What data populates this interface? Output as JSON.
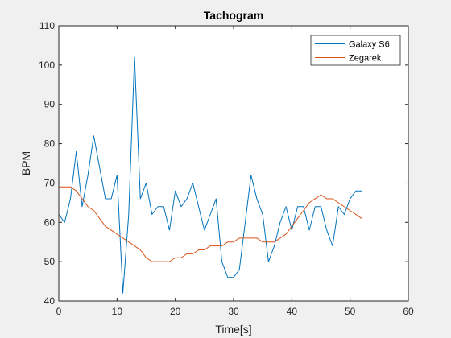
{
  "chart_data": {
    "type": "line",
    "title": "Tachogram",
    "xlabel": "Time[s]",
    "ylabel": "BPM",
    "xlim": [
      0,
      60
    ],
    "ylim": [
      40,
      110
    ],
    "xticks": [
      0,
      10,
      20,
      30,
      40,
      50,
      60
    ],
    "yticks": [
      40,
      50,
      60,
      70,
      80,
      90,
      100,
      110
    ],
    "grid": false,
    "legend_position": "top-right",
    "series": [
      {
        "name": "Galaxy S6",
        "color": "#0072bd",
        "x": [
          0,
          1,
          2,
          3,
          4,
          5,
          6,
          7,
          8,
          9,
          10,
          11,
          12,
          13,
          14,
          15,
          16,
          17,
          18,
          19,
          20,
          21,
          22,
          23,
          24,
          25,
          26,
          27,
          28,
          29,
          30,
          31,
          32,
          33,
          34,
          35,
          36,
          37,
          38,
          39,
          40,
          41,
          42,
          43,
          44,
          45,
          46,
          47,
          48,
          49,
          50,
          51,
          52
        ],
        "y": [
          62,
          60,
          66,
          78,
          64,
          72,
          82,
          74,
          66,
          66,
          72,
          42,
          62,
          102,
          66,
          70,
          62,
          64,
          64,
          58,
          68,
          64,
          66,
          70,
          64,
          58,
          62,
          66,
          50,
          46,
          46,
          48,
          60,
          72,
          66,
          62,
          50,
          54,
          60,
          64,
          58,
          64,
          64,
          58,
          64,
          64,
          58,
          54,
          64,
          62,
          66,
          68,
          68
        ]
      },
      {
        "name": "Zegarek",
        "color": "#d95319",
        "x": [
          0,
          1,
          2,
          3,
          4,
          5,
          6,
          7,
          8,
          9,
          10,
          11,
          12,
          13,
          14,
          15,
          16,
          17,
          18,
          19,
          20,
          21,
          22,
          23,
          24,
          25,
          26,
          27,
          28,
          29,
          30,
          31,
          32,
          33,
          34,
          35,
          36,
          37,
          38,
          39,
          40,
          41,
          42,
          43,
          44,
          45,
          46,
          47,
          48,
          49,
          50,
          51,
          52
        ],
        "y": [
          69,
          69,
          69,
          68,
          66,
          64,
          63,
          61,
          59,
          58,
          57,
          56,
          55,
          54,
          53,
          51,
          50,
          50,
          50,
          50,
          51,
          51,
          52,
          52,
          53,
          53,
          54,
          54,
          54,
          55,
          55,
          56,
          56,
          56,
          56,
          55,
          55,
          55,
          56,
          57,
          59,
          61,
          63,
          65,
          66,
          67,
          66,
          66,
          65,
          64,
          63,
          62,
          61
        ]
      }
    ]
  }
}
